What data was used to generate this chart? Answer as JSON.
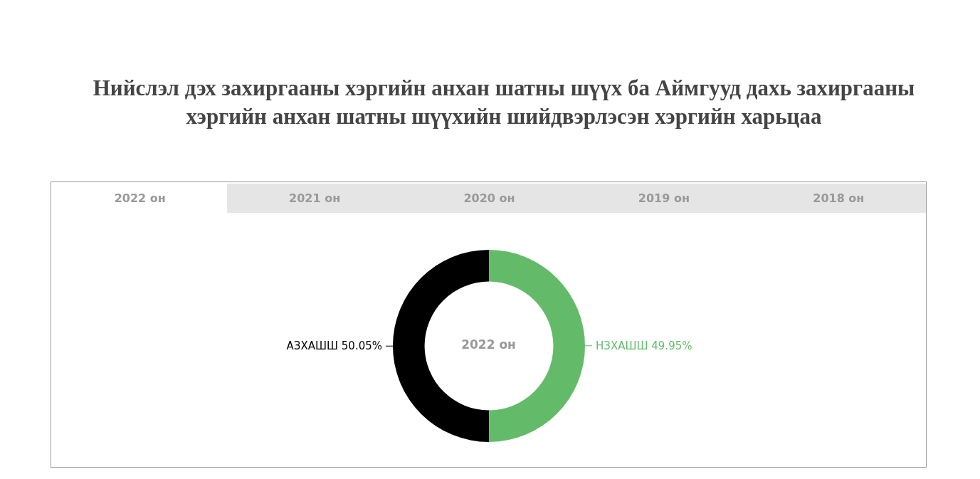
{
  "chart_data": {
    "type": "donut",
    "title": "Нийслэл дэх захиргааны хэргийн анхан шатны шүүх ба Аймгууд дахь захиргааны хэргийн анхан шатны шүүхийн шийдвэрлэсэн хэргийн харьцаа",
    "categories": [
      "АЗХАШШ",
      "НЗХАШШ"
    ],
    "values": [
      50.05,
      49.95
    ],
    "colors": [
      "#000000",
      "#63bb6a"
    ],
    "value_labels": [
      "50.05%",
      "49.95%"
    ],
    "legend": false,
    "annotations": [
      "2022 он",
      "2021 он",
      "2020 он",
      "2019 он",
      "2018 он",
      "2022 он"
    ]
  }
}
